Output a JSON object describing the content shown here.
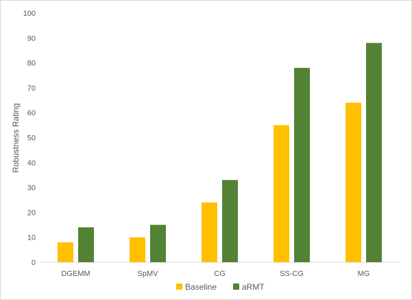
{
  "chart_data": {
    "type": "bar",
    "title": "",
    "xlabel": "",
    "ylabel": "Robustness Rating",
    "ylim": [
      0,
      100
    ],
    "yticks": [
      0,
      10,
      20,
      30,
      40,
      50,
      60,
      70,
      80,
      90,
      100
    ],
    "grid": false,
    "legend_position": "bottom",
    "categories": [
      "DGEMM",
      "SpMV",
      "CG",
      "SS-CG",
      "MG"
    ],
    "series": [
      {
        "name": "Baseline",
        "color": "#ffc000",
        "values": [
          8,
          10,
          24,
          55,
          64
        ]
      },
      {
        "name": "aRMT",
        "color": "#548235",
        "values": [
          14,
          15,
          33,
          78,
          88
        ]
      }
    ]
  }
}
